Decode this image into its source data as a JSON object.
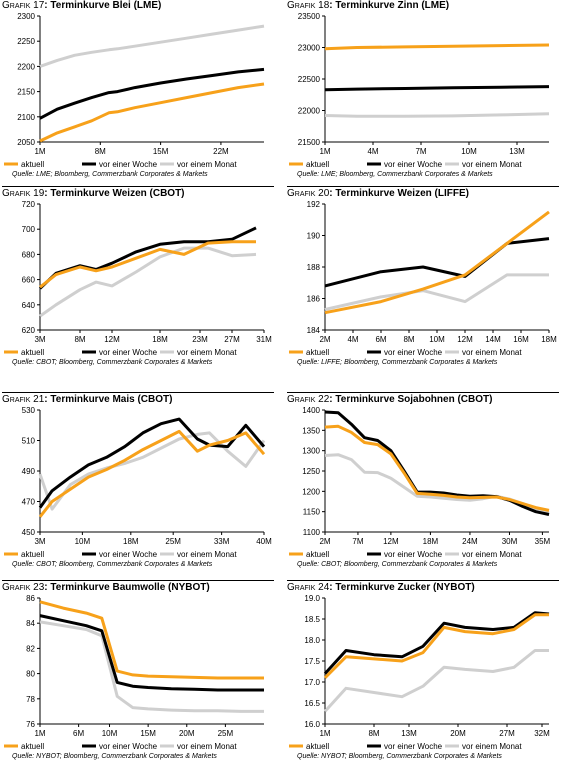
{
  "legend": [
    "aktuell",
    "vor einer Woche",
    "vor einem Monat"
  ],
  "colors": {
    "aktuell": "#f7a11a",
    "week": "#000000",
    "month": "#cfcfcf"
  },
  "chart_data": [
    {
      "type": "line",
      "prefix": "Grafik 17",
      "title": "Terminkurve Blei (LME)",
      "source": "Quelle: LME; Bloomberg, Commerzbank Corporates & Markets",
      "ylim": [
        2050,
        2300
      ],
      "yticks": [
        "2300",
        "2250",
        "2200",
        "2150",
        "2100",
        "2050"
      ],
      "xlim": [
        1,
        27
      ],
      "xticks": [
        {
          "v": 1,
          "label": "1M"
        },
        {
          "v": 8,
          "label": "8M"
        },
        {
          "v": 15,
          "label": "15M"
        },
        {
          "v": 22,
          "label": "22M"
        }
      ],
      "series": [
        {
          "name": "aktuell",
          "x": [
            1,
            3,
            5,
            7,
            9,
            10,
            12,
            15,
            18,
            21,
            24,
            27
          ],
          "y": [
            2052,
            2068,
            2080,
            2092,
            2108,
            2110,
            2118,
            2128,
            2138,
            2148,
            2158,
            2165
          ]
        },
        {
          "name": "vor einer Woche",
          "x": [
            1,
            3,
            5,
            7,
            9,
            10,
            12,
            15,
            18,
            21,
            24,
            27
          ],
          "y": [
            2097,
            2115,
            2127,
            2138,
            2148,
            2150,
            2158,
            2167,
            2175,
            2182,
            2189,
            2194
          ]
        },
        {
          "name": "vor einem Monat",
          "x": [
            1,
            3,
            5,
            7,
            9,
            10,
            12,
            15,
            18,
            21,
            24,
            27
          ],
          "y": [
            2200,
            2212,
            2222,
            2228,
            2233,
            2235,
            2240,
            2248,
            2256,
            2264,
            2272,
            2280
          ]
        }
      ]
    },
    {
      "type": "line",
      "prefix": "Grafik 18",
      "title": "Terminkurve Zinn (LME)",
      "source": "Quelle: LME; Bloomberg, Commerzbank Corporates & Markets",
      "ylim": [
        21500,
        23500
      ],
      "yticks": [
        "23500",
        "23000",
        "22500",
        "22000",
        "21500"
      ],
      "xlim": [
        1,
        15
      ],
      "xticks": [
        {
          "v": 1,
          "label": "1M"
        },
        {
          "v": 4,
          "label": "4M"
        },
        {
          "v": 7,
          "label": "7M"
        },
        {
          "v": 10,
          "label": "10M"
        },
        {
          "v": 13,
          "label": "13M"
        }
      ],
      "series": [
        {
          "name": "aktuell",
          "x": [
            1,
            3,
            6,
            9,
            12,
            15
          ],
          "y": [
            22980,
            23000,
            23010,
            23020,
            23030,
            23040
          ]
        },
        {
          "name": "vor einer Woche",
          "x": [
            1,
            3,
            6,
            9,
            12,
            15
          ],
          "y": [
            22330,
            22340,
            22350,
            22360,
            22370,
            22380
          ]
        },
        {
          "name": "vor einem Monat",
          "x": [
            1,
            3,
            6,
            9,
            12,
            15
          ],
          "y": [
            21920,
            21910,
            21910,
            21915,
            21930,
            21950
          ]
        }
      ]
    },
    {
      "type": "line",
      "prefix": "Grafik 19",
      "title": "Terminkurve Weizen (CBOT)",
      "source": "Quelle: CBOT; Bloomberg, Commerzbank Corporates & Markets",
      "ylim": [
        620,
        720
      ],
      "yticks": [
        "720",
        "700",
        "680",
        "660",
        "640",
        "620"
      ],
      "xlim": [
        3,
        31
      ],
      "xticks": [
        {
          "v": 3,
          "label": "3M"
        },
        {
          "v": 8,
          "label": "8M"
        },
        {
          "v": 12,
          "label": "12M"
        },
        {
          "v": 18,
          "label": "18M"
        },
        {
          "v": 23,
          "label": "23M"
        },
        {
          "v": 27,
          "label": "27M"
        },
        {
          "v": 31,
          "label": "31M"
        }
      ],
      "series": [
        {
          "name": "aktuell",
          "x": [
            3,
            5,
            8,
            10,
            12,
            15,
            18,
            21,
            24,
            27,
            30
          ],
          "y": [
            654,
            664,
            670,
            667,
            670,
            677,
            684,
            680,
            689,
            690,
            690
          ]
        },
        {
          "name": "vor einer Woche",
          "x": [
            3,
            5,
            8,
            10,
            12,
            15,
            18,
            21,
            24,
            27,
            30
          ],
          "y": [
            653,
            665,
            671,
            668,
            673,
            682,
            688,
            690,
            690,
            692,
            701
          ]
        },
        {
          "name": "vor einem Monat",
          "x": [
            3,
            5,
            8,
            10,
            12,
            15,
            18,
            21,
            24,
            27,
            30
          ],
          "y": [
            631,
            640,
            652,
            658,
            655,
            666,
            678,
            685,
            685,
            679,
            680
          ]
        }
      ]
    },
    {
      "type": "line",
      "prefix": "Grafik 20",
      "title": "Terminkurve Weizen (LIFFE)",
      "source": "Quelle: LIFFE; Bloomberg, Commerzbank Corporates & Markets",
      "ylim": [
        184,
        192
      ],
      "yticks": [
        "192",
        "190",
        "188",
        "186",
        "184"
      ],
      "xlim": [
        2,
        18
      ],
      "xticks": [
        {
          "v": 2,
          "label": "2M"
        },
        {
          "v": 4,
          "label": "4M"
        },
        {
          "v": 6,
          "label": "6M"
        },
        {
          "v": 8,
          "label": "8M"
        },
        {
          "v": 10,
          "label": "10M"
        },
        {
          "v": 12,
          "label": "12M"
        },
        {
          "v": 14,
          "label": "14M"
        },
        {
          "v": 16,
          "label": "16M"
        },
        {
          "v": 18,
          "label": "18M"
        }
      ],
      "series": [
        {
          "name": "aktuell",
          "x": [
            2,
            6,
            9,
            12,
            15,
            18
          ],
          "y": [
            185.1,
            185.8,
            186.6,
            187.5,
            189.5,
            191.5
          ]
        },
        {
          "name": "vor einer Woche",
          "x": [
            2,
            6,
            9,
            12,
            15,
            18
          ],
          "y": [
            186.8,
            187.7,
            188,
            187.4,
            189.5,
            189.8
          ]
        },
        {
          "name": "vor einem Monat",
          "x": [
            2,
            6,
            9,
            12,
            15,
            18
          ],
          "y": [
            185.3,
            186.1,
            186.5,
            185.8,
            187.5,
            187.5
          ]
        }
      ]
    },
    {
      "type": "line",
      "prefix": "Grafik 21",
      "title": "Terminkurve Mais (CBOT)",
      "source": "Quelle: CBOT; Bloomberg, Commerzbank Corporates & Markets",
      "ylim": [
        450,
        530
      ],
      "yticks": [
        "530",
        "510",
        "490",
        "470",
        "450"
      ],
      "xlim": [
        3,
        40
      ],
      "xticks": [
        {
          "v": 3,
          "label": "3M"
        },
        {
          "v": 10,
          "label": "10M"
        },
        {
          "v": 18,
          "label": "18M"
        },
        {
          "v": 25,
          "label": "25M"
        },
        {
          "v": 33,
          "label": "33M"
        },
        {
          "v": 40,
          "label": "40M"
        }
      ],
      "series": [
        {
          "name": "aktuell",
          "x": [
            3,
            5,
            8,
            11,
            14,
            17,
            20,
            23,
            26,
            29,
            31,
            34,
            37,
            40
          ],
          "y": [
            460,
            470,
            478,
            486,
            491,
            497,
            504,
            510,
            516,
            503,
            507,
            510,
            515,
            501
          ]
        },
        {
          "name": "vor einer Woche",
          "x": [
            3,
            5,
            8,
            11,
            14,
            17,
            20,
            23,
            26,
            29,
            31,
            34,
            37,
            40
          ],
          "y": [
            466,
            477,
            486,
            494,
            499,
            506,
            515,
            521,
            524,
            511,
            507,
            506,
            520,
            506
          ]
        },
        {
          "name": "vor einem Monat",
          "x": [
            3,
            5,
            8,
            11,
            14,
            17,
            20,
            23,
            26,
            29,
            31,
            34,
            37,
            40
          ],
          "y": [
            488,
            465,
            481,
            488,
            492,
            495,
            499,
            505,
            511,
            514,
            515,
            503,
            493,
            510
          ]
        }
      ]
    },
    {
      "type": "line",
      "prefix": "Grafik 22",
      "title": "Terminkurve Sojabohnen (CBOT)",
      "source": "Quelle: CBOT; Bloomberg, Commerzbank Corporates & Markets",
      "ylim": [
        1100,
        1400
      ],
      "yticks": [
        "1400",
        "1350",
        "1300",
        "1250",
        "1200",
        "1150",
        "1100"
      ],
      "xlim": [
        2,
        36
      ],
      "xticks": [
        {
          "v": 2,
          "label": "2M"
        },
        {
          "v": 7,
          "label": "7M"
        },
        {
          "v": 12,
          "label": "12M"
        },
        {
          "v": 18,
          "label": "18M"
        },
        {
          "v": 24,
          "label": "24M"
        },
        {
          "v": 30,
          "label": "30M"
        },
        {
          "v": 35,
          "label": "35M"
        }
      ],
      "series": [
        {
          "name": "aktuell",
          "x": [
            2,
            4,
            6,
            8,
            10,
            12,
            14,
            16,
            18,
            20,
            22,
            24,
            26,
            28,
            30,
            32,
            34,
            36
          ],
          "y": [
            1358,
            1360,
            1345,
            1320,
            1315,
            1292,
            1245,
            1195,
            1193,
            1190,
            1186,
            1184,
            1185,
            1186,
            1180,
            1170,
            1160,
            1153
          ]
        },
        {
          "name": "vor einer Woche",
          "x": [
            2,
            4,
            6,
            8,
            10,
            12,
            14,
            16,
            18,
            20,
            22,
            24,
            26,
            28,
            30,
            32,
            34,
            36
          ],
          "y": [
            1395,
            1393,
            1365,
            1332,
            1325,
            1300,
            1250,
            1198,
            1198,
            1196,
            1191,
            1188,
            1189,
            1187,
            1178,
            1163,
            1150,
            1143
          ]
        },
        {
          "name": "vor einem Monat",
          "x": [
            2,
            4,
            6,
            8,
            10,
            12,
            14,
            16,
            18,
            20,
            22,
            24,
            26,
            28,
            30,
            32,
            34,
            36
          ],
          "y": [
            1288,
            1290,
            1278,
            1247,
            1246,
            1232,
            1210,
            1188,
            1186,
            1183,
            1180,
            1178,
            1182,
            1188,
            1181,
            1170,
            1155,
            1147
          ]
        }
      ]
    },
    {
      "type": "line",
      "prefix": "Grafik 23",
      "title": "Terminkurve Baumwolle (NYBOT)",
      "source": "Quelle: NYBOT; Bloomberg, Commerzbank Corporates & Markets",
      "ylim": [
        76,
        86
      ],
      "yticks": [
        "86",
        "84",
        "82",
        "80",
        "78",
        "76"
      ],
      "xlim": [
        1,
        30
      ],
      "xticks": [
        {
          "v": 1,
          "label": "1M"
        },
        {
          "v": 6,
          "label": "6M"
        },
        {
          "v": 10,
          "label": "10M"
        },
        {
          "v": 15,
          "label": "15M"
        },
        {
          "v": 20,
          "label": "20M"
        },
        {
          "v": 25,
          "label": "25M"
        }
      ],
      "series": [
        {
          "name": "aktuell",
          "x": [
            1,
            4,
            7,
            9,
            11,
            13,
            15,
            18,
            21,
            24,
            27,
            30
          ],
          "y": [
            85.7,
            85.2,
            84.8,
            84.4,
            80.2,
            79.9,
            79.8,
            79.75,
            79.7,
            79.65,
            79.65,
            79.65
          ]
        },
        {
          "name": "vor einer Woche",
          "x": [
            1,
            4,
            7,
            9,
            11,
            13,
            15,
            18,
            21,
            24,
            27,
            30
          ],
          "y": [
            84.6,
            84.2,
            83.8,
            83.4,
            79.3,
            79,
            78.9,
            78.8,
            78.75,
            78.7,
            78.7,
            78.7
          ]
        },
        {
          "name": "vor einem Monat",
          "x": [
            1,
            4,
            7,
            9,
            11,
            13,
            15,
            18,
            21,
            24,
            27,
            30
          ],
          "y": [
            84.1,
            83.8,
            83.5,
            83.0,
            78.2,
            77.3,
            77.2,
            77.1,
            77.05,
            77.05,
            77.0,
            77.0
          ]
        }
      ]
    },
    {
      "type": "line",
      "prefix": "Grafik 24",
      "title": "Terminkurve Zucker (NYBOT)",
      "source": "Quelle: NYBOT; Bloomberg, Commerzbank Corporates & Markets",
      "ylim": [
        16.0,
        19.0
      ],
      "yticks": [
        "19.0",
        "18.5",
        "18.0",
        "17.5",
        "17.0",
        "16.5",
        "16.0"
      ],
      "xlim": [
        1,
        33
      ],
      "xticks": [
        {
          "v": 1,
          "label": "1M"
        },
        {
          "v": 8,
          "label": "8M"
        },
        {
          "v": 13,
          "label": "13M"
        },
        {
          "v": 20,
          "label": "20M"
        },
        {
          "v": 27,
          "label": "27M"
        },
        {
          "v": 32,
          "label": "32M"
        }
      ],
      "series": [
        {
          "name": "aktuell",
          "x": [
            1,
            4,
            8,
            12,
            15,
            18,
            21,
            25,
            28,
            31,
            33
          ],
          "y": [
            17.1,
            17.6,
            17.55,
            17.5,
            17.7,
            18.3,
            18.2,
            18.15,
            18.25,
            18.6,
            18.6
          ]
        },
        {
          "name": "vor einer Woche",
          "x": [
            1,
            4,
            8,
            12,
            15,
            18,
            21,
            25,
            28,
            31,
            33
          ],
          "y": [
            17.2,
            17.75,
            17.65,
            17.6,
            17.85,
            18.4,
            18.3,
            18.25,
            18.3,
            18.65,
            18.62
          ]
        },
        {
          "name": "vor einem Monat",
          "x": [
            1,
            4,
            8,
            12,
            15,
            18,
            21,
            25,
            28,
            31,
            33
          ],
          "y": [
            16.3,
            16.85,
            16.75,
            16.65,
            16.9,
            17.35,
            17.3,
            17.25,
            17.35,
            17.75,
            17.75
          ]
        }
      ]
    }
  ]
}
